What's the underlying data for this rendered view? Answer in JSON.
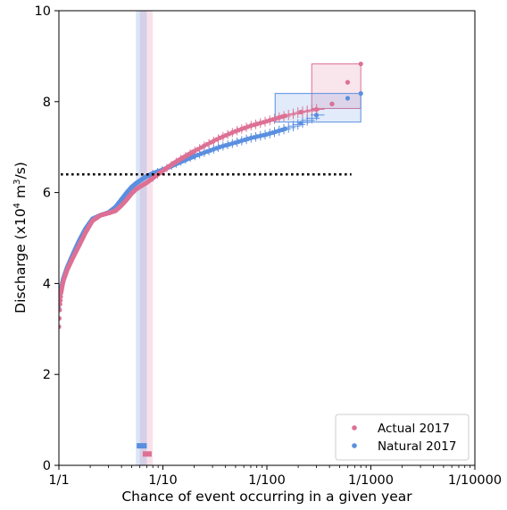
{
  "chart_data": {
    "type": "scatter",
    "x_scale": "log",
    "xlabel": "Chance of event occurring in a given year",
    "ylabel_parts": {
      "prefix": "Discharge (x10",
      "exp1": "4",
      "mid": " m",
      "exp2": "3",
      "suffix": "/s)"
    },
    "x_ticks": [
      {
        "value": 1,
        "label": "1/1"
      },
      {
        "value": 10,
        "label": "1/10"
      },
      {
        "value": 100,
        "label": "1/100"
      },
      {
        "value": 1000,
        "label": "1/1000"
      },
      {
        "value": 10000,
        "label": "1/10000"
      }
    ],
    "y_ticks": [
      0,
      2,
      4,
      6,
      8,
      10
    ],
    "xlim": [
      1,
      10000
    ],
    "ylim": [
      0,
      10
    ],
    "threshold": {
      "y": 6.4,
      "style": "dotted",
      "color": "#000000"
    },
    "legend_position": "bottom-right",
    "series": [
      {
        "name": "Actual 2017",
        "color": "#dd7094",
        "curve": [
          [
            1.0,
            3.05
          ],
          [
            1.02,
            3.5
          ],
          [
            1.05,
            3.8
          ],
          [
            1.1,
            4.05
          ],
          [
            1.2,
            4.3
          ],
          [
            1.35,
            4.55
          ],
          [
            1.55,
            4.82
          ],
          [
            1.8,
            5.12
          ],
          [
            2.1,
            5.38
          ],
          [
            2.5,
            5.5
          ],
          [
            3.0,
            5.55
          ],
          [
            3.5,
            5.6
          ],
          [
            4.0,
            5.72
          ],
          [
            4.5,
            5.85
          ],
          [
            5.0,
            5.98
          ],
          [
            5.5,
            6.07
          ],
          [
            6.0,
            6.13
          ],
          [
            7.0,
            6.22
          ],
          [
            8.0,
            6.32
          ],
          [
            10.0,
            6.48
          ],
          [
            13.0,
            6.66
          ],
          [
            18.0,
            6.85
          ],
          [
            25.0,
            7.03
          ],
          [
            35.0,
            7.2
          ],
          [
            50.0,
            7.35
          ],
          [
            70.0,
            7.47
          ],
          [
            100.0,
            7.57
          ],
          [
            140.0,
            7.67
          ],
          [
            200.0,
            7.76
          ],
          [
            280.0,
            7.82
          ],
          [
            400.0,
            7.87
          ],
          [
            800.0,
            8.83
          ]
        ],
        "return_period_band": [
          6.0,
          8.0
        ],
        "return_period_marker": {
          "x": [
            6.4,
            7.8
          ],
          "y": 0.25
        },
        "tail_box": {
          "x": [
            270,
            800
          ],
          "y": [
            7.85,
            8.83
          ]
        }
      },
      {
        "name": "Natural 2017",
        "color": "#5a8fe0",
        "curve": [
          [
            1.0,
            3.45
          ],
          [
            1.02,
            3.7
          ],
          [
            1.05,
            3.9
          ],
          [
            1.1,
            4.1
          ],
          [
            1.2,
            4.35
          ],
          [
            1.35,
            4.62
          ],
          [
            1.55,
            4.92
          ],
          [
            1.8,
            5.2
          ],
          [
            2.1,
            5.42
          ],
          [
            2.5,
            5.5
          ],
          [
            3.0,
            5.56
          ],
          [
            3.5,
            5.68
          ],
          [
            4.0,
            5.85
          ],
          [
            4.5,
            6.0
          ],
          [
            5.0,
            6.12
          ],
          [
            5.5,
            6.2
          ],
          [
            6.0,
            6.26
          ],
          [
            7.0,
            6.36
          ],
          [
            8.0,
            6.42
          ],
          [
            10.0,
            6.5
          ],
          [
            13.0,
            6.62
          ],
          [
            18.0,
            6.76
          ],
          [
            25.0,
            6.88
          ],
          [
            35.0,
            7.0
          ],
          [
            50.0,
            7.1
          ],
          [
            70.0,
            7.2
          ],
          [
            100.0,
            7.28
          ],
          [
            140.0,
            7.38
          ],
          [
            200.0,
            7.5
          ],
          [
            280.0,
            7.65
          ],
          [
            400.0,
            7.93
          ],
          [
            800.0,
            8.18
          ]
        ],
        "return_period_band": [
          5.5,
          7.0
        ],
        "return_period_marker": {
          "x": [
            5.6,
            7.0
          ],
          "y": 0.43
        },
        "tail_box": {
          "x": [
            120,
            800
          ],
          "y": [
            7.55,
            8.18
          ]
        }
      }
    ]
  }
}
